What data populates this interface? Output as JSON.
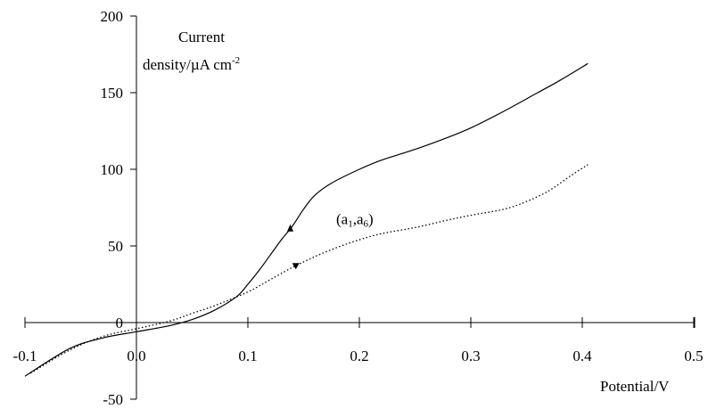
{
  "chart_data": {
    "type": "line",
    "xlabel": "Potential/V",
    "ylabel_line1": "Current",
    "ylabel_line2": "density/µA cm",
    "ylabel_sup": "-2",
    "xlim": [
      -0.1,
      0.5
    ],
    "ylim": [
      -50,
      200
    ],
    "x_ticks": [
      "-0.1",
      "0.0",
      "0.1",
      "0.2",
      "0.3",
      "0.4",
      "0.5"
    ],
    "x_tick_values": [
      -0.1,
      0.0,
      0.1,
      0.2,
      0.3,
      0.4,
      0.5
    ],
    "y_ticks": [
      "200",
      "150",
      "100",
      "50",
      "0",
      "-50"
    ],
    "y_tick_values": [
      200,
      150,
      100,
      50,
      0,
      -50
    ],
    "grid": false,
    "annotation": {
      "base1": "(a",
      "sub1": "1",
      "mid": ",a",
      "sub2": "6",
      "end": ")",
      "x": 0.18,
      "y": 63
    },
    "series": [
      {
        "style": "solid",
        "direction": "forward",
        "x": [
          -0.1,
          -0.06,
          -0.03,
          0.0,
          0.03,
          0.05,
          0.07,
          0.09,
          0.1,
          0.11,
          0.12,
          0.13,
          0.14,
          0.15,
          0.16,
          0.175,
          0.2,
          0.22,
          0.25,
          0.28,
          0.3,
          0.33,
          0.36,
          0.38,
          0.405
        ],
        "y": [
          -35,
          -17,
          -10,
          -6,
          -2,
          2,
          8,
          17,
          25,
          34,
          44,
          54,
          63,
          74,
          83,
          91,
          100,
          106,
          113,
          121,
          127,
          138,
          150,
          158,
          169
        ]
      },
      {
        "style": "dotted",
        "direction": "reverse",
        "x": [
          -0.095,
          -0.06,
          -0.03,
          0.0,
          0.03,
          0.05,
          0.07,
          0.1,
          0.12,
          0.14,
          0.16,
          0.18,
          0.2,
          0.22,
          0.25,
          0.28,
          0.3,
          0.33,
          0.35,
          0.37,
          0.39,
          0.405
        ],
        "y": [
          -33,
          -18,
          -9,
          -4,
          1,
          6,
          11,
          20,
          28,
          36,
          43,
          49,
          54,
          58,
          62,
          67,
          70,
          74,
          79,
          86,
          96,
          103
        ]
      }
    ]
  }
}
